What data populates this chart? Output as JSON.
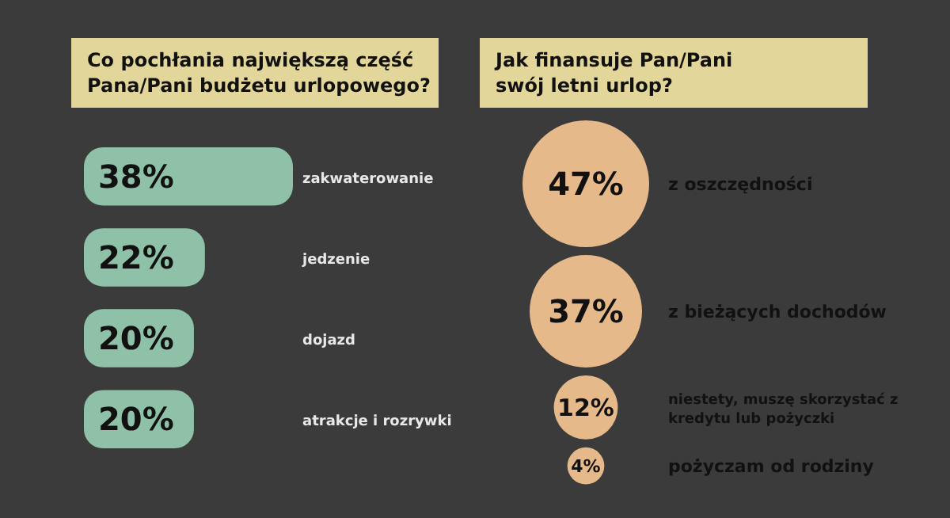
{
  "chart_data": [
    {
      "type": "bar",
      "orientation": "horizontal",
      "title": "Co pochłania największą część Pana/Pani budżetu urlopowego?",
      "categories": [
        "zakwaterowanie",
        "jedzenie",
        "dojazd",
        "atrakcje i rozrywki"
      ],
      "values": [
        38,
        22,
        20,
        20
      ],
      "value_labels": [
        "38%",
        "22%",
        "20%",
        "20%"
      ],
      "color": "#8fc1a9"
    },
    {
      "type": "other",
      "title": "Jak finansuje Pan/Pani swój letni urlop?",
      "categories": [
        "z oszczędności",
        "z bieżących dochodów",
        "niestety, muszę skorzystać z kredytu lub pożyczki",
        "pożyczam od rodziny"
      ],
      "values": [
        47,
        37,
        12,
        4
      ],
      "value_labels": [
        "47%",
        "37%",
        "12%",
        "4%"
      ],
      "color": "#e6b98b"
    }
  ]
}
